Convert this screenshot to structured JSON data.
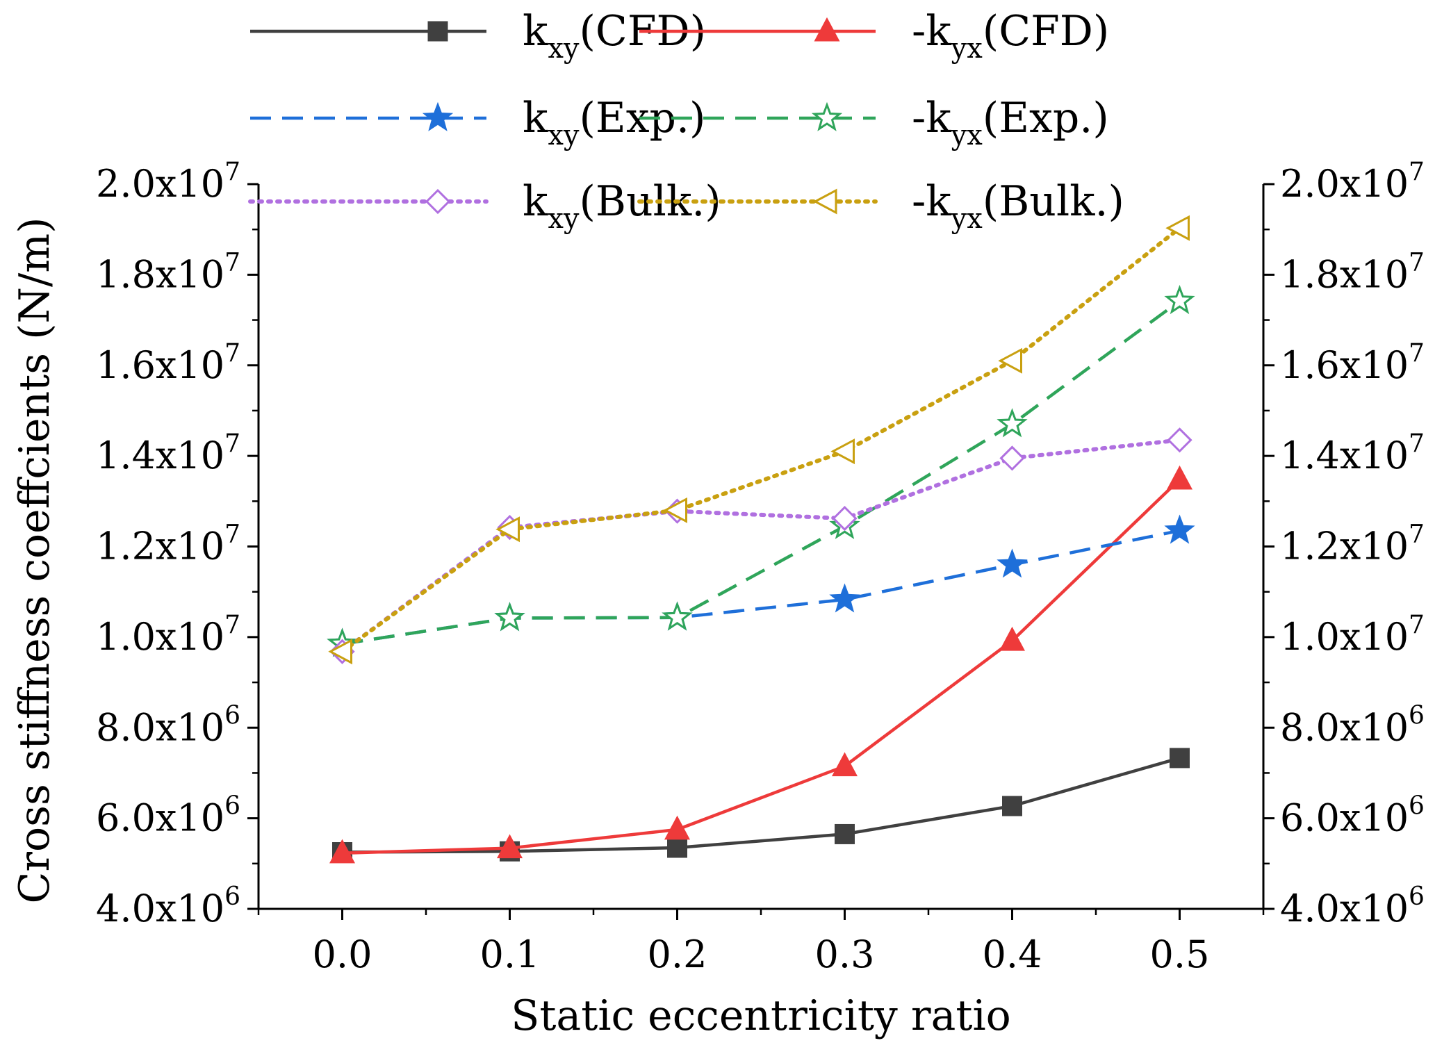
{
  "chart_data": {
    "type": "line",
    "xlabel": "Static eccentricity ratio",
    "ylabel": "Cross stiffness coeffcients (N/m)",
    "xlim": [
      -0.05,
      0.55
    ],
    "ylim": [
      4000000,
      20000000
    ],
    "grid": false,
    "legend_position": "top",
    "x": [
      0.0,
      0.1,
      0.2,
      0.3,
      0.4,
      0.5
    ],
    "x_tick_labels": [
      "0.0",
      "0.1",
      "0.2",
      "0.3",
      "0.4",
      "0.5"
    ],
    "y_ticks": [
      {
        "value": 4000000,
        "mantissa": "4.0x10",
        "exponent": "6"
      },
      {
        "value": 6000000,
        "mantissa": "6.0x10",
        "exponent": "6"
      },
      {
        "value": 8000000,
        "mantissa": "8.0x10",
        "exponent": "6"
      },
      {
        "value": 10000000,
        "mantissa": "1.0x10",
        "exponent": "7"
      },
      {
        "value": 12000000,
        "mantissa": "1.2x10",
        "exponent": "7"
      },
      {
        "value": 14000000,
        "mantissa": "1.4x10",
        "exponent": "7"
      },
      {
        "value": 16000000,
        "mantissa": "1.6x10",
        "exponent": "7"
      },
      {
        "value": 18000000,
        "mantissa": "1.8x10",
        "exponent": "7"
      },
      {
        "value": 20000000,
        "mantissa": "2.0x10",
        "exponent": "7"
      }
    ],
    "series": [
      {
        "prefix": "k",
        "sub": "xy",
        "suffix": "(CFD)",
        "color": "#404040",
        "dash": "solid",
        "marker": "square",
        "filled": true,
        "values": [
          5250000,
          5270000,
          5350000,
          5650000,
          6270000,
          7330000
        ]
      },
      {
        "prefix": "-k",
        "sub": "yx",
        "suffix": "(CFD)",
        "color": "#ee3a3a",
        "dash": "solid",
        "marker": "triangle-up",
        "filled": true,
        "values": [
          5230000,
          5340000,
          5750000,
          7150000,
          9920000,
          13480000
        ]
      },
      {
        "prefix": "k",
        "sub": "xy",
        "suffix": "(Exp.)",
        "color": "#1e6fd9",
        "dash": "dashed",
        "marker": "star",
        "filled": true,
        "values": [
          9850000,
          10420000,
          10430000,
          10830000,
          11600000,
          12350000
        ]
      },
      {
        "prefix": "-k",
        "sub": "yx",
        "suffix": "(Exp.)",
        "color": "#2fa55a",
        "dash": "dashed",
        "marker": "star",
        "filled": false,
        "values": [
          9850000,
          10420000,
          10430000,
          12450000,
          14700000,
          17420000
        ]
      },
      {
        "prefix": "k",
        "sub": "xy",
        "suffix": "(Bulk.)",
        "color": "#b070e0",
        "dash": "dotted",
        "marker": "diamond",
        "filled": false,
        "values": [
          9680000,
          12420000,
          12780000,
          12620000,
          13950000,
          14350000
        ]
      },
      {
        "prefix": "-k",
        "sub": "yx",
        "suffix": "(Bulk.)",
        "color": "#c9a010",
        "dash": "dotted",
        "marker": "triangle-left",
        "filled": false,
        "values": [
          9680000,
          12380000,
          12800000,
          14100000,
          16100000,
          19030000
        ]
      }
    ]
  }
}
